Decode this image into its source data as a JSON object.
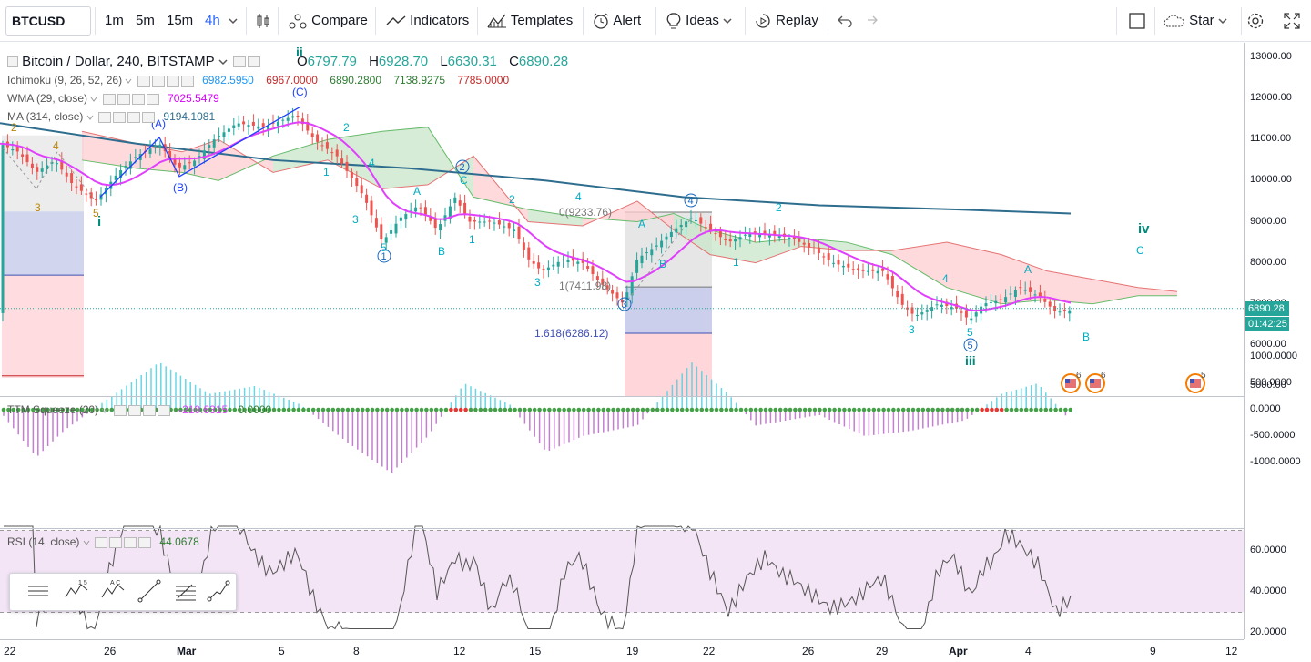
{
  "toolbar": {
    "symbol": "BTCUSD",
    "intervals": [
      "1m",
      "5m",
      "15m",
      "4h"
    ],
    "compare": "Compare",
    "indicators": "Indicators",
    "templates": "Templates",
    "alert": "Alert",
    "ideas": "Ideas",
    "replay": "Replay",
    "star": "Star"
  },
  "legend": {
    "title": "Bitcoin / Dollar, 240, BITSTAMP",
    "ohlc": {
      "o_label": "O",
      "o": "6797.79",
      "h_label": "H",
      "h": "6928.70",
      "l_label": "L",
      "l": "6630.31",
      "c_label": "C",
      "c": "6890.28"
    },
    "ichimoku": {
      "name": "Ichimoku (9, 26, 52, 26)",
      "v1": "6982.5950",
      "v2": "6967.0000",
      "v3": "6890.2800",
      "v4": "7138.9275",
      "v5": "7785.0000"
    },
    "wma": {
      "name": "WMA (29, close)",
      "value": "7025.5479"
    },
    "ma": {
      "name": "MA (314, close)",
      "value": "9194.1081"
    },
    "ttm": {
      "name": "TTM Squeeze (20)",
      "v1": "-210.6315",
      "v2": "0.0000"
    },
    "rsi": {
      "name": "RSI (14, close)",
      "value": "44.0678"
    }
  },
  "price_axis": [
    "13000.00",
    "12000.00",
    "11000.00",
    "10000.00",
    "9000.00",
    "8000.00",
    "7000.00",
    "6000.00",
    "5000.00"
  ],
  "price_tag": {
    "price": "6890.28",
    "timer": "01:42:25"
  },
  "ttm_axis": [
    "1000.0000",
    "500.0000",
    "0.0000",
    "-500.0000",
    "-1000.0000"
  ],
  "rsi_axis": [
    "60.0000",
    "40.0000",
    "20.0000"
  ],
  "time_axis": [
    "22",
    "26",
    "Mar",
    "5",
    "8",
    "12",
    "15",
    "19",
    "22",
    "26",
    "29",
    "Apr",
    "4",
    "9",
    "12"
  ],
  "annotations": {
    "fib_0": "0(9233.76)",
    "fib_1": "1(7411.98)",
    "fib_1618": "1.618(6286.12)",
    "wave_ii": "ii",
    "wave_i": "i",
    "wave_iii": "iii",
    "wave_iv": "iv",
    "wave_C_top": "(C)",
    "wave_A_top": "(A)",
    "wave_B": "(B)",
    "labels": [
      "1",
      "2",
      "3",
      "4",
      "5",
      "A",
      "B",
      "C"
    ],
    "event_counts": [
      "6",
      "6",
      "5"
    ]
  },
  "colors": {
    "up": "#26a69a",
    "down": "#ef5350",
    "wma": "#e040fb",
    "ma": "#2e6d8e",
    "ichimoku_green": "#4caf50",
    "ichimoku_red": "#ef5350",
    "cloud_green": "#c8e6c9",
    "cloud_red": "#ffcdd2",
    "rsi_band": "#f3e5f5",
    "ttm_pos": "#80deea",
    "ttm_neg": "#ce93d8"
  }
}
